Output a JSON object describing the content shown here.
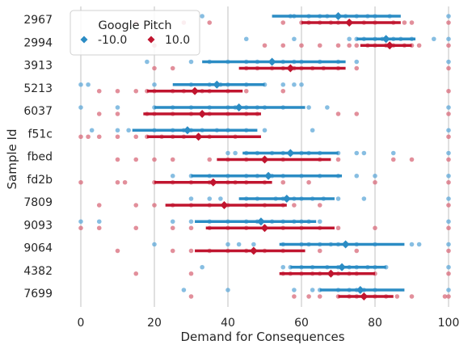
{
  "chart_data": {
    "type": "scatter",
    "subtype": "strip plot with point estimates and error bars",
    "xlabel": "Demand for Consequences",
    "ylabel": "Sample Id",
    "xlim": [
      -5,
      100
    ],
    "xticks": [
      0,
      20,
      40,
      60,
      80,
      100
    ],
    "grid": "vertical",
    "categories": [
      "2967",
      "2994",
      "3913",
      "5213",
      "6037",
      "f51c",
      "fbed",
      "fd2b",
      "7809",
      "9093",
      "9064",
      "4382",
      "7699"
    ],
    "legend": {
      "title": "Google Pitch",
      "placement": "top-left",
      "entries": [
        "-10.0",
        "10.0"
      ]
    },
    "colors": {
      "series_neg": "#2b8cc4",
      "series_pos": "#c0152f",
      "points_neg": "#5fa8d8",
      "points_pos": "#d86a7a",
      "grid": "#cccccc",
      "text": "#262626"
    },
    "series": [
      {
        "name": "-10.0",
        "means": [
          70,
          83,
          52,
          37,
          43,
          29,
          57,
          51,
          56,
          49,
          72,
          71,
          76
        ],
        "ci_low": [
          52,
          75,
          33,
          25,
          20,
          14,
          44,
          30,
          43,
          31,
          54,
          57,
          65
        ],
        "ci_high": [
          87,
          91,
          72,
          50,
          61,
          48,
          70,
          71,
          69,
          64,
          88,
          83,
          88
        ],
        "points": [
          [
            33,
            57,
            58,
            62,
            65,
            67,
            70,
            72,
            75,
            78,
            80,
            84,
            100
          ],
          [
            45,
            58,
            73,
            75,
            77,
            80,
            82,
            85,
            87,
            90,
            96,
            100
          ],
          [
            18,
            30,
            35,
            40,
            45,
            48,
            52,
            55,
            58,
            60,
            65,
            70,
            75,
            100
          ],
          [
            0,
            2,
            20,
            30,
            35,
            38,
            40,
            45,
            50,
            55,
            58,
            60
          ],
          [
            0,
            10,
            20,
            25,
            30,
            35,
            40,
            42,
            45,
            48,
            50,
            55,
            62,
            67,
            100
          ],
          [
            3,
            10,
            13,
            20,
            25,
            28,
            30,
            33,
            37,
            40,
            45,
            50,
            63,
            100
          ],
          [
            40,
            42,
            45,
            48,
            52,
            55,
            60,
            62,
            65,
            70,
            75,
            77,
            85,
            100
          ],
          [
            25,
            30,
            35,
            40,
            45,
            48,
            52,
            55,
            60,
            65,
            70,
            75,
            80,
            100
          ],
          [
            30,
            35,
            38,
            45,
            48,
            53,
            55,
            58,
            60,
            63,
            66,
            70,
            77,
            100
          ],
          [
            0,
            5,
            25,
            30,
            35,
            40,
            45,
            48,
            52,
            55,
            58,
            60,
            62,
            65,
            100
          ],
          [
            20,
            40,
            43,
            47,
            55,
            60,
            62,
            65,
            68,
            70,
            75,
            80,
            90,
            92,
            100
          ],
          [
            33,
            55,
            57,
            60,
            63,
            67,
            70,
            73,
            75,
            78,
            80,
            83,
            100
          ],
          [
            28,
            40,
            58,
            63,
            65,
            70,
            73,
            75,
            77,
            80,
            100
          ]
        ]
      },
      {
        "name": "10.0",
        "means": [
          73,
          84,
          57,
          31,
          33,
          32,
          50,
          36,
          39,
          50,
          47,
          68,
          77
        ],
        "ci_low": [
          60,
          76,
          43,
          18,
          17,
          18,
          37,
          20,
          23,
          34,
          31,
          54,
          70
        ],
        "ci_high": [
          87,
          90,
          72,
          44,
          49,
          49,
          68,
          52,
          56,
          69,
          61,
          80,
          85
        ],
        "points": [
          [
            15,
            28,
            35,
            55,
            60,
            62,
            65,
            68,
            70,
            73,
            77,
            80,
            85,
            88,
            90,
            100
          ],
          [
            20,
            50,
            55,
            60,
            65,
            70,
            73,
            75,
            78,
            80,
            83,
            85,
            88,
            90,
            92,
            100
          ],
          [
            20,
            25,
            45,
            48,
            52,
            55,
            58,
            60,
            63,
            66,
            70,
            75,
            100
          ],
          [
            5,
            10,
            15,
            18,
            20,
            25,
            28,
            33,
            35,
            40,
            45,
            55,
            100
          ],
          [
            5,
            10,
            18,
            20,
            25,
            30,
            35,
            40,
            45,
            48,
            70,
            75,
            100
          ],
          [
            0,
            2,
            5,
            10,
            15,
            18,
            22,
            25,
            28,
            32,
            35,
            42,
            100
          ],
          [
            10,
            15,
            20,
            25,
            35,
            40,
            45,
            50,
            55,
            65,
            70,
            85,
            90,
            100
          ],
          [
            0,
            10,
            12,
            20,
            25,
            30,
            35,
            40,
            42,
            45,
            50,
            55,
            62,
            80,
            100
          ],
          [
            5,
            15,
            20,
            25,
            30,
            35,
            40,
            45,
            50,
            55,
            58,
            65,
            100
          ],
          [
            0,
            5,
            15,
            25,
            30,
            35,
            40,
            45,
            50,
            55,
            60,
            65,
            70,
            80,
            100
          ],
          [
            10,
            25,
            30,
            35,
            40,
            45,
            50,
            55,
            65,
            75,
            100
          ],
          [
            15,
            30,
            55,
            57,
            60,
            63,
            65,
            68,
            70,
            73,
            75,
            80,
            100
          ],
          [
            30,
            58,
            62,
            65,
            70,
            73,
            75,
            77,
            80,
            83,
            86,
            90,
            99,
            100
          ]
        ]
      }
    ]
  }
}
